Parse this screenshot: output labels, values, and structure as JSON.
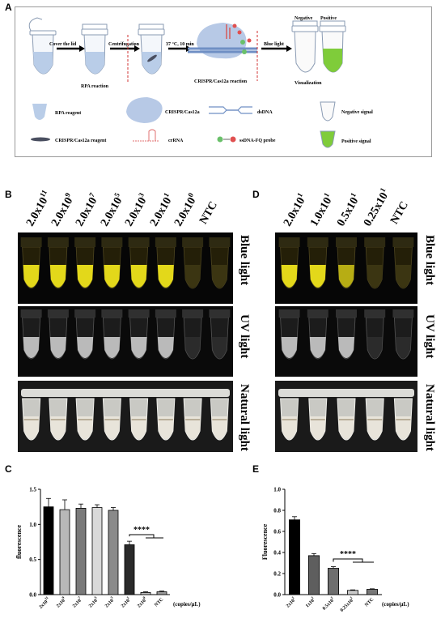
{
  "panels": {
    "A": "A",
    "B": "B",
    "C": "C",
    "D": "D",
    "E": "E"
  },
  "schematic": {
    "step_cover": "Cover the lid",
    "step_centrifuge": "Centrifugation",
    "step_incubate": "37 °C, 10 min",
    "step_blue": "Blue light",
    "rpa_reaction": "RPA  reaction",
    "crispr_reaction": "CRISPR/Cas12a reaction",
    "visualization": "Visualization",
    "negative": "Negative",
    "positive": "Positive",
    "legend": {
      "rpa_reagent": "RPA reagent",
      "cas12a": "CRISPR/Cas12a",
      "dsdna": "dsDNA",
      "neg_signal": "Negative signal",
      "crispr_reagent": "CRISPR/Cas12a reagent",
      "crrna": "crRNA",
      "probe": "ssDNA-FQ probe",
      "pos_signal": "Positive signal"
    }
  },
  "photo_labels": {
    "blue": "Blue light",
    "uv": "UV light",
    "natural": "Natural  light"
  },
  "B_concentrations": [
    {
      "base": "2.0x10",
      "exp": "11"
    },
    {
      "base": "2.0x10",
      "exp": "9"
    },
    {
      "base": "2.0x10",
      "exp": "7"
    },
    {
      "base": "2.0x10",
      "exp": "5"
    },
    {
      "base": "2.0x10",
      "exp": "3"
    },
    {
      "base": "2.0x10",
      "exp": "1"
    },
    {
      "base": "2.0x10",
      "exp": "0"
    },
    {
      "base": "NTC",
      "exp": ""
    }
  ],
  "D_concentrations": [
    {
      "base": "2.0x10",
      "exp": "1"
    },
    {
      "base": "1.0x10",
      "exp": "1"
    },
    {
      "base": "0.5x10",
      "exp": "1"
    },
    {
      "base": "0.25x10",
      "exp": "1"
    },
    {
      "base": "NTC",
      "exp": ""
    }
  ],
  "B_blue_intensity": [
    1,
    1,
    1,
    1,
    1,
    1,
    0.15,
    0.1
  ],
  "D_blue_intensity": [
    1,
    1,
    0.7,
    0.12,
    0.1
  ],
  "chart_data": [
    {
      "type": "bar",
      "panel": "C",
      "ylabel": "fluorescence",
      "xunit": "(copies/μL)",
      "categories": [
        "2x10^11",
        "2x10^9",
        "2x10^7",
        "2x10^5",
        "2x10^3",
        "2x10^1",
        "2x10^0",
        "NTC"
      ],
      "tick_labels": [
        "2x10",
        "2x10",
        "2x10",
        "2x10",
        "2x10",
        "2x10",
        "2x10",
        "NTC"
      ],
      "tick_exps": [
        "11",
        "9",
        "7",
        "5",
        "3",
        "1",
        "0",
        ""
      ],
      "values": [
        1.25,
        1.21,
        1.23,
        1.24,
        1.2,
        0.71,
        0.03,
        0.04
      ],
      "errors": [
        0.12,
        0.14,
        0.06,
        0.04,
        0.04,
        0.05,
        0.01,
        0.01
      ],
      "colors": [
        "#000000",
        "#b8b8b8",
        "#7a7a7a",
        "#d9d9d9",
        "#8a8a8a",
        "#2a2a2a",
        "#bcbcbc",
        "#9a9a9a"
      ],
      "ylim": [
        0,
        1.5
      ],
      "yticks": [
        "0.0",
        "0.5",
        "1.0",
        "1.5"
      ],
      "significance": "****"
    },
    {
      "type": "bar",
      "panel": "E",
      "ylabel": "Fluorescence",
      "xunit": "(copies/μL)",
      "categories": [
        "2x10^1",
        "1x10^1",
        "0.5x10^1",
        "0.25x10^1",
        "NTC"
      ],
      "tick_labels": [
        "2x10",
        "1x10",
        "0.5x10",
        "0.25x10",
        "NTC"
      ],
      "tick_exps": [
        "1",
        "1",
        "1",
        "1",
        ""
      ],
      "values": [
        0.71,
        0.37,
        0.25,
        0.04,
        0.05
      ],
      "errors": [
        0.03,
        0.02,
        0.015,
        0.005,
        0.005
      ],
      "colors": [
        "#000000",
        "#5e5e5e",
        "#6e6e6e",
        "#c9c9c9",
        "#777777"
      ],
      "ylim": [
        0,
        1.0
      ],
      "yticks": [
        "0.0",
        "0.2",
        "0.4",
        "0.6",
        "0.8",
        "1.0"
      ],
      "significance": "****"
    }
  ]
}
